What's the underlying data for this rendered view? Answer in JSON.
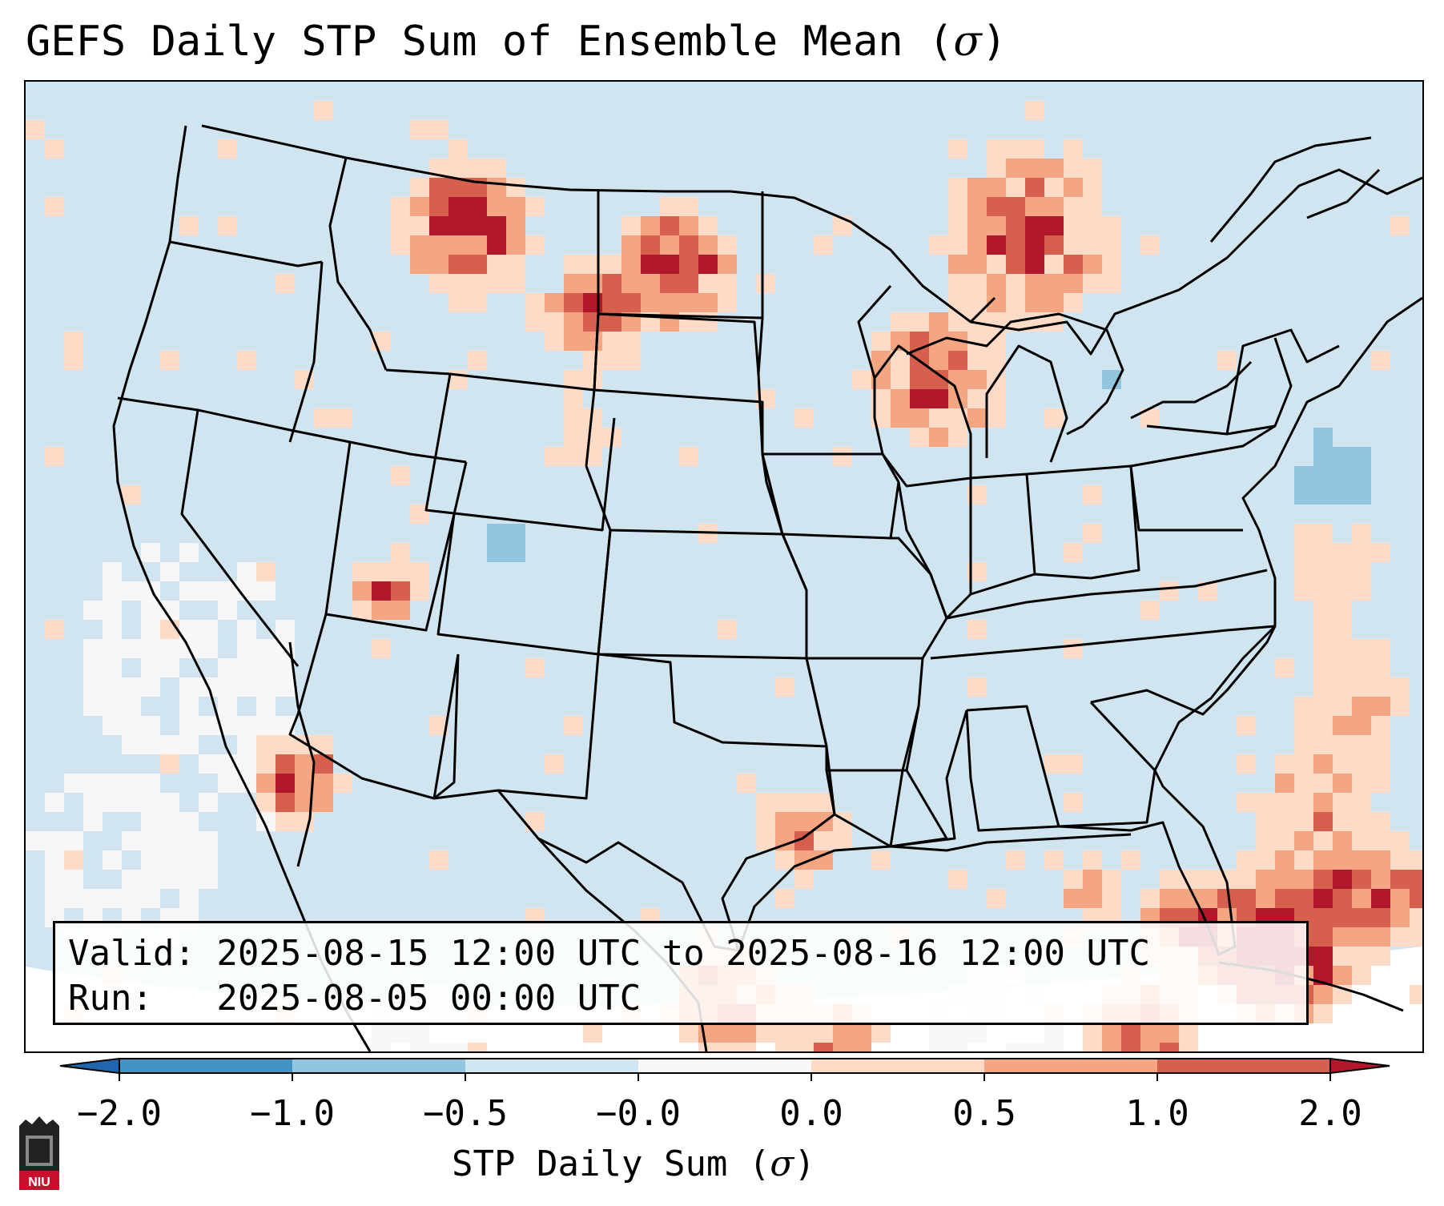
{
  "title": {
    "text": "GEFS Daily STP Sum of Ensemble Mean (",
    "sigma": "σ",
    "close": ")"
  },
  "info": {
    "valid_line": "Valid: 2025-08-15 12:00 UTC to 2025-08-16 12:00 UTC",
    "run_line": "Run:   2025-08-05 00:00 UTC"
  },
  "colorbar": {
    "title": "STP Daily Sum (",
    "sigma": "σ",
    "close": ")",
    "ticks": [
      "−2.0",
      "−1.0",
      "−0.5",
      "−0.0",
      "0.0",
      "0.5",
      "1.0",
      "2.0"
    ],
    "colors": [
      "#2166ac",
      "#4393c3",
      "#92c5de",
      "#d1e5f0",
      "#f7f7f7",
      "#fddbc7",
      "#f4a582",
      "#d6604d",
      "#b2182b"
    ]
  },
  "map": {
    "background": "#d1e5f0",
    "field": "STP daily sum standardized anomaly"
  },
  "logo": {
    "text": "NIU"
  }
}
